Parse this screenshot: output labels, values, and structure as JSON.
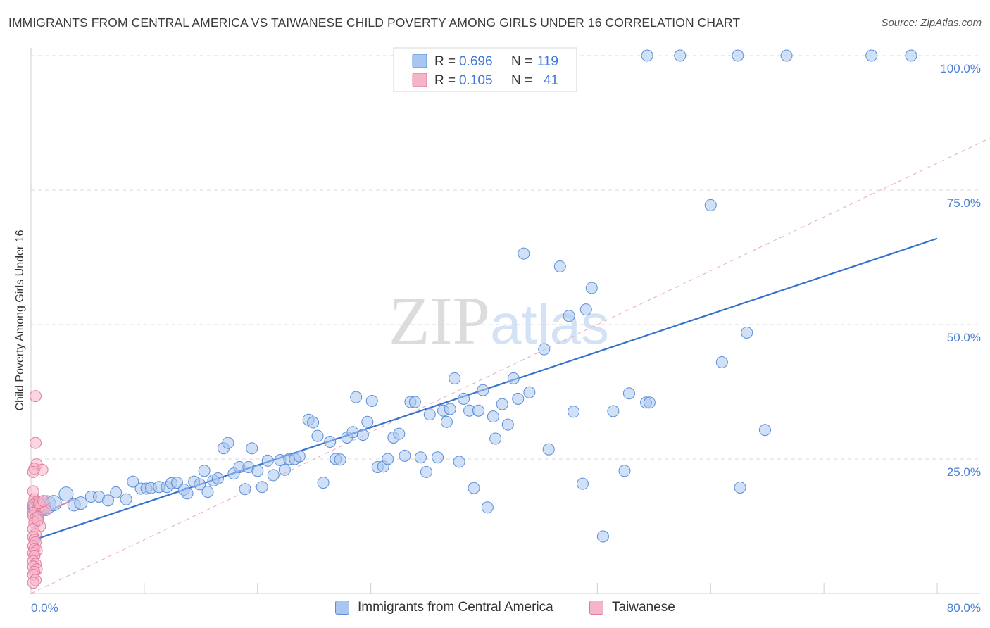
{
  "title": "IMMIGRANTS FROM CENTRAL AMERICA VS TAIWANESE CHILD POVERTY AMONG GIRLS UNDER 16 CORRELATION CHART",
  "source": "Source: ZipAtlas.com",
  "watermark": {
    "zip": "ZIP",
    "atlas": "atlas"
  },
  "colors": {
    "blue_fill": "#a9c6f0",
    "blue_stroke": "#5b8ed8",
    "blue_line": "#3572d0",
    "pink_fill": "#f5b5c8",
    "pink_stroke": "#e27a9c",
    "pink_line": "#e27a9c",
    "tick_text": "#4a7fd4",
    "grid": "#d9d9d9"
  },
  "legend": {
    "rows": [
      {
        "r_label": "R =",
        "r_value": "0.696",
        "n_label": "N =",
        "n_value": "119",
        "series": "blue"
      },
      {
        "r_label": "R =",
        "r_value": "0.105",
        "n_label": "N =",
        "n_value": "41",
        "series": "pink"
      }
    ]
  },
  "bottom_legend": [
    {
      "label": "Immigrants from Central America",
      "series": "blue"
    },
    {
      "label": "Taiwanese",
      "series": "pink"
    }
  ],
  "chart_data": {
    "type": "scatter",
    "title": "IMMIGRANTS FROM CENTRAL AMERICA VS TAIWANESE CHILD POVERTY AMONG GIRLS UNDER 16 CORRELATION CHART",
    "xlabel": "",
    "ylabel": "Child Poverty Among Girls Under 16",
    "xlim": [
      0,
      80
    ],
    "ylim": [
      0,
      100
    ],
    "x_tick_labels": [
      "0.0%",
      "80.0%"
    ],
    "y_ticks": [
      25,
      50,
      75,
      100
    ],
    "y_tick_labels": [
      "25.0%",
      "50.0%",
      "75.0%",
      "100.0%"
    ],
    "grid": true,
    "legend_placement": "top-center",
    "series": [
      {
        "name": "Immigrants from Central America",
        "color": "#a9c6f0",
        "trend": {
          "x": [
            0.3,
            80
          ],
          "y": [
            10,
            66
          ]
        },
        "points": [
          [
            0.6,
            16,
            14
          ],
          [
            1.0,
            16.2,
            12
          ],
          [
            1.4,
            16.5,
            13
          ],
          [
            2.0,
            16.8,
            11
          ],
          [
            3.1,
            18.5,
            10
          ],
          [
            3.8,
            16.5,
            9
          ],
          [
            4.4,
            16.8,
            9
          ],
          [
            5.3,
            18,
            8
          ],
          [
            6.0,
            18,
            8
          ],
          [
            6.8,
            17.3,
            8
          ],
          [
            7.5,
            18.8,
            8
          ],
          [
            8.4,
            17.5,
            8
          ],
          [
            9.0,
            20.8,
            8
          ],
          [
            9.7,
            19.5,
            8
          ],
          [
            10.2,
            19.5,
            8
          ],
          [
            10.6,
            19.6,
            8
          ],
          [
            11.3,
            19.8,
            8
          ],
          [
            12.0,
            19.8,
            8
          ],
          [
            12.4,
            20.5,
            8
          ],
          [
            12.9,
            20.6,
            8
          ],
          [
            13.5,
            19.3,
            8
          ],
          [
            13.8,
            18.6,
            8
          ],
          [
            14.4,
            20.8,
            8
          ],
          [
            14.9,
            20.3,
            8
          ],
          [
            15.3,
            22.8,
            8
          ],
          [
            15.6,
            18.9,
            8
          ],
          [
            16.1,
            21,
            8
          ],
          [
            16.5,
            21.4,
            8
          ],
          [
            17.0,
            27,
            8
          ],
          [
            17.4,
            28,
            8
          ],
          [
            17.9,
            22.3,
            8
          ],
          [
            18.4,
            23.5,
            8
          ],
          [
            18.9,
            19.4,
            8
          ],
          [
            19.2,
            23.5,
            8
          ],
          [
            19.5,
            27,
            8
          ],
          [
            20.0,
            22.8,
            8
          ],
          [
            20.4,
            19.8,
            8
          ],
          [
            20.9,
            24.7,
            8
          ],
          [
            21.4,
            22,
            8
          ],
          [
            22.0,
            24.8,
            8
          ],
          [
            22.4,
            23,
            8
          ],
          [
            22.8,
            25,
            8
          ],
          [
            23.3,
            25,
            8
          ],
          [
            23.7,
            25.5,
            8
          ],
          [
            24.5,
            32.3,
            8
          ],
          [
            24.9,
            31.8,
            8
          ],
          [
            25.3,
            29.3,
            8
          ],
          [
            25.8,
            20.6,
            8
          ],
          [
            26.4,
            28.2,
            8
          ],
          [
            26.9,
            25,
            8
          ],
          [
            27.3,
            24.9,
            8
          ],
          [
            27.9,
            29,
            8
          ],
          [
            28.4,
            30,
            8
          ],
          [
            28.7,
            36.5,
            8
          ],
          [
            29.3,
            29.5,
            8
          ],
          [
            29.7,
            31.9,
            8
          ],
          [
            30.1,
            35.8,
            8
          ],
          [
            30.6,
            23.5,
            8
          ],
          [
            31.1,
            23.6,
            8
          ],
          [
            31.5,
            25,
            8
          ],
          [
            32.0,
            29,
            8
          ],
          [
            32.5,
            29.7,
            8
          ],
          [
            33.0,
            25.6,
            8
          ],
          [
            33.5,
            35.6,
            8
          ],
          [
            33.9,
            35.6,
            8
          ],
          [
            34.4,
            25.3,
            8
          ],
          [
            34.9,
            22.6,
            8
          ],
          [
            35.2,
            33.3,
            8
          ],
          [
            35.9,
            25.3,
            8
          ],
          [
            36.4,
            34,
            8
          ],
          [
            36.7,
            31.9,
            8
          ],
          [
            37.0,
            34.3,
            8
          ],
          [
            37.4,
            40,
            8
          ],
          [
            37.8,
            24.5,
            8
          ],
          [
            38.2,
            36.2,
            8
          ],
          [
            38.7,
            34,
            8
          ],
          [
            39.1,
            19.6,
            8
          ],
          [
            39.5,
            34,
            8
          ],
          [
            39.9,
            37.8,
            8
          ],
          [
            40.3,
            16,
            8
          ],
          [
            40.8,
            32.9,
            8
          ],
          [
            41.0,
            28.8,
            8
          ],
          [
            41.6,
            35.2,
            8
          ],
          [
            42.1,
            31.4,
            8
          ],
          [
            42.6,
            40,
            8
          ],
          [
            43.0,
            36.2,
            8
          ],
          [
            43.5,
            63.2,
            8
          ],
          [
            44.0,
            37.4,
            8
          ],
          [
            45.3,
            45.4,
            8
          ],
          [
            45.7,
            26.8,
            8
          ],
          [
            46.7,
            60.8,
            8
          ],
          [
            47.5,
            51.6,
            8
          ],
          [
            47.9,
            33.8,
            8
          ],
          [
            48.7,
            20.4,
            8
          ],
          [
            49.0,
            52.8,
            8
          ],
          [
            49.5,
            56.8,
            8
          ],
          [
            50.5,
            10.6,
            8
          ],
          [
            51.4,
            33.9,
            8
          ],
          [
            52.4,
            22.8,
            8
          ],
          [
            52.8,
            37.2,
            8
          ],
          [
            54.3,
            35.5,
            8
          ],
          [
            54.6,
            35.5,
            8
          ],
          [
            60.0,
            72.2,
            8
          ],
          [
            61.0,
            43,
            8
          ],
          [
            62.6,
            19.7,
            8
          ],
          [
            63.2,
            48.5,
            8
          ],
          [
            64.8,
            30.4,
            8
          ],
          [
            54.4,
            100,
            8
          ],
          [
            57.3,
            100,
            8
          ],
          [
            62.4,
            100,
            8
          ],
          [
            66.7,
            100,
            8
          ],
          [
            74.2,
            100,
            8
          ],
          [
            77.7,
            100,
            8
          ]
        ]
      },
      {
        "name": "Taiwanese",
        "color": "#f5b5c8",
        "trend": {
          "x": [
            0,
            3.8
          ],
          "y": [
            13.8,
            17.5
          ]
        },
        "points": [
          [
            0.4,
            36.7,
            8
          ],
          [
            0.4,
            28,
            8
          ],
          [
            0.5,
            24,
            8
          ],
          [
            0.3,
            23.2,
            8
          ],
          [
            1.0,
            23,
            8
          ],
          [
            0.2,
            22.6,
            8
          ],
          [
            0.2,
            19,
            8
          ],
          [
            0.3,
            17.5,
            8
          ],
          [
            0.5,
            17,
            8
          ],
          [
            0.2,
            16.5,
            8
          ],
          [
            0.3,
            16,
            8
          ],
          [
            0.6,
            15.8,
            8
          ],
          [
            0.9,
            16.2,
            8
          ],
          [
            1.3,
            15.5,
            8
          ],
          [
            0.2,
            15,
            8
          ],
          [
            0.2,
            14.5,
            8
          ],
          [
            0.4,
            14,
            8
          ],
          [
            0.6,
            14.2,
            8
          ],
          [
            0.3,
            13.2,
            8
          ],
          [
            0.8,
            12.5,
            8
          ],
          [
            0.2,
            12,
            8
          ],
          [
            0.4,
            11,
            8
          ],
          [
            0.2,
            10.5,
            8
          ],
          [
            0.3,
            10,
            8
          ],
          [
            0.4,
            9.5,
            8
          ],
          [
            0.2,
            8.8,
            8
          ],
          [
            0.3,
            8.3,
            8
          ],
          [
            0.5,
            8,
            8
          ],
          [
            0.2,
            7.5,
            8
          ],
          [
            0.3,
            7,
            8
          ],
          [
            0.2,
            6,
            8
          ],
          [
            0.4,
            5.5,
            8
          ],
          [
            0.2,
            5,
            8
          ],
          [
            0.5,
            4.5,
            8
          ],
          [
            0.3,
            4,
            8
          ],
          [
            0.2,
            3.5,
            8
          ],
          [
            0.4,
            2.5,
            8
          ],
          [
            0.2,
            2,
            8
          ],
          [
            0.7,
            16.8,
            8
          ],
          [
            1.1,
            17.2,
            8
          ],
          [
            0.6,
            13.6,
            8
          ]
        ]
      }
    ]
  }
}
